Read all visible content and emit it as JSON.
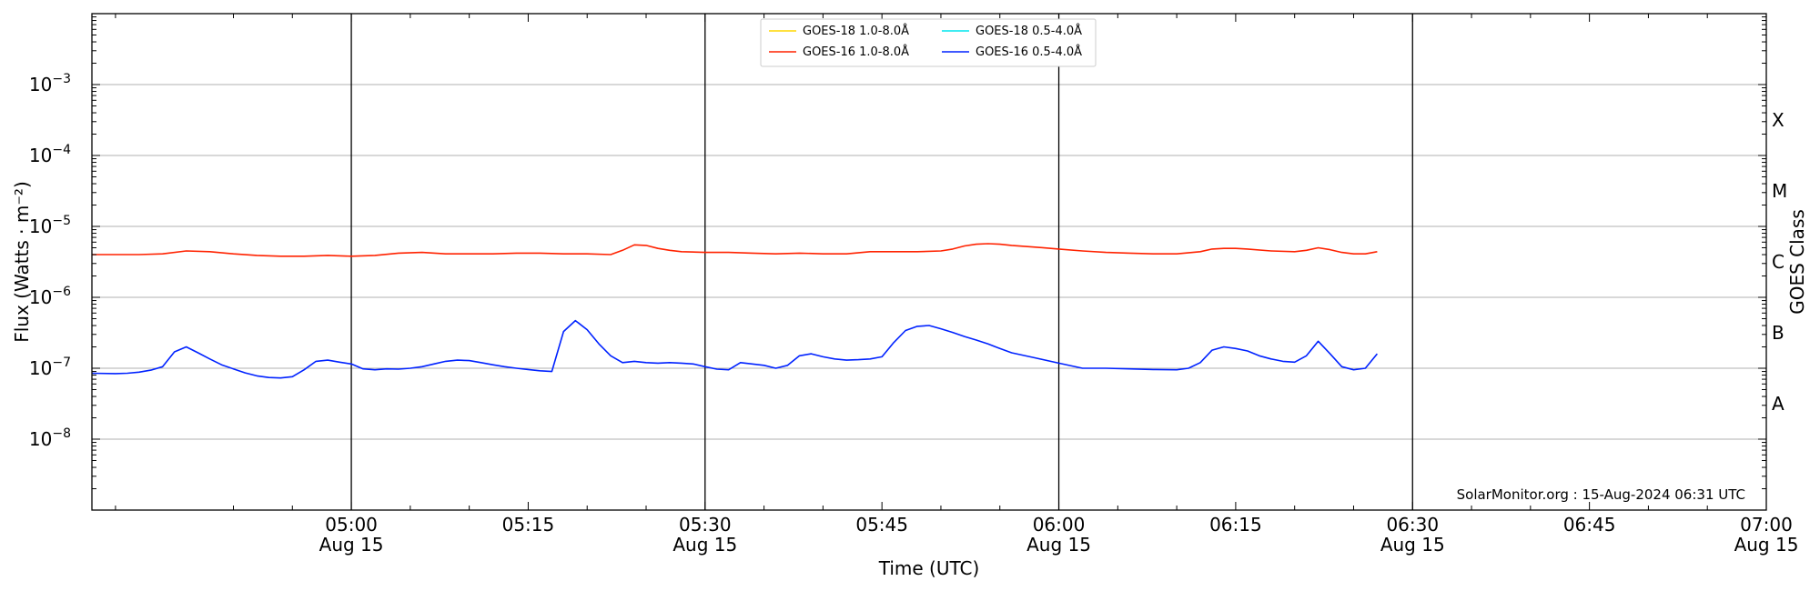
{
  "chart_data": {
    "type": "line",
    "xlabel": "Time (UTC)",
    "ylabel": "Flux (Watts · m⁻²)",
    "y2label": "GOES Class",
    "yscale": "log",
    "ylim": [
      1e-09,
      0.01
    ],
    "xlim": [
      "04:38",
      "07:00"
    ],
    "x_ticks": [
      {
        "t": "05:00",
        "label": "05:00",
        "sub": "Aug 15"
      },
      {
        "t": "05:15",
        "label": "05:15",
        "sub": ""
      },
      {
        "t": "05:30",
        "label": "05:30",
        "sub": "Aug 15"
      },
      {
        "t": "05:45",
        "label": "05:45",
        "sub": ""
      },
      {
        "t": "06:00",
        "label": "06:00",
        "sub": "Aug 15"
      },
      {
        "t": "06:15",
        "label": "06:15",
        "sub": ""
      },
      {
        "t": "06:30",
        "label": "06:30",
        "sub": "Aug 15"
      },
      {
        "t": "06:45",
        "label": "06:45",
        "sub": ""
      },
      {
        "t": "07:00",
        "label": "07:00",
        "sub": "Aug 15"
      }
    ],
    "vertical_lines": [
      "05:00",
      "05:30",
      "06:00",
      "06:30"
    ],
    "y_ticks": [
      {
        "v": 1e-08,
        "base": "10",
        "exp": "−8"
      },
      {
        "v": 1e-07,
        "base": "10",
        "exp": "−7"
      },
      {
        "v": 1e-06,
        "base": "10",
        "exp": "−6"
      },
      {
        "v": 1e-05,
        "base": "10",
        "exp": "−5"
      },
      {
        "v": 0.0001,
        "base": "10",
        "exp": "−4"
      },
      {
        "v": 0.001,
        "base": "10",
        "exp": "−3"
      }
    ],
    "goes_classes": [
      {
        "label": "A",
        "v": 3.16e-08
      },
      {
        "label": "B",
        "v": 3.16e-07
      },
      {
        "label": "C",
        "v": 3.16e-06
      },
      {
        "label": "M",
        "v": 3.16e-05
      },
      {
        "label": "X",
        "v": 0.000316
      }
    ],
    "legend": [
      {
        "name": "GOES-18 1.0-8.0Å",
        "color": "#ffd700"
      },
      {
        "name": "GOES-18 0.5-4.0Å",
        "color": "#00e5ee"
      },
      {
        "name": "GOES-16 1.0-8.0Å",
        "color": "#ff2200"
      },
      {
        "name": "GOES-16 0.5-4.0Å",
        "color": "#0022ff"
      }
    ],
    "series": [
      {
        "name": "GOES-16 1.0-8.0Å",
        "color": "#ff2200",
        "x": [
          "04:38",
          "04:40",
          "04:42",
          "04:44",
          "04:46",
          "04:48",
          "04:50",
          "04:52",
          "04:54",
          "04:56",
          "04:58",
          "05:00",
          "05:02",
          "05:04",
          "05:06",
          "05:08",
          "05:10",
          "05:12",
          "05:14",
          "05:16",
          "05:18",
          "05:20",
          "05:22",
          "05:23",
          "05:24",
          "05:25",
          "05:26",
          "05:27",
          "05:28",
          "05:30",
          "05:32",
          "05:34",
          "05:36",
          "05:38",
          "05:40",
          "05:42",
          "05:44",
          "05:46",
          "05:48",
          "05:50",
          "05:51",
          "05:52",
          "05:53",
          "05:54",
          "05:55",
          "05:56",
          "05:58",
          "06:00",
          "06:02",
          "06:04",
          "06:06",
          "06:08",
          "06:10",
          "06:12",
          "06:13",
          "06:14",
          "06:15",
          "06:16",
          "06:18",
          "06:20",
          "06:21",
          "06:22",
          "06:23",
          "06:24",
          "06:25",
          "06:26",
          "06:27"
        ],
        "values": [
          4e-06,
          4e-06,
          4e-06,
          4.1e-06,
          4.5e-06,
          4.4e-06,
          4.1e-06,
          3.9e-06,
          3.8e-06,
          3.8e-06,
          3.9e-06,
          3.8e-06,
          3.9e-06,
          4.2e-06,
          4.3e-06,
          4.1e-06,
          4.1e-06,
          4.1e-06,
          4.2e-06,
          4.2e-06,
          4.1e-06,
          4.1e-06,
          4e-06,
          4.6e-06,
          5.5e-06,
          5.4e-06,
          4.9e-06,
          4.6e-06,
          4.4e-06,
          4.3e-06,
          4.3e-06,
          4.2e-06,
          4.1e-06,
          4.2e-06,
          4.1e-06,
          4.1e-06,
          4.4e-06,
          4.4e-06,
          4.4e-06,
          4.5e-06,
          4.8e-06,
          5.3e-06,
          5.6e-06,
          5.7e-06,
          5.6e-06,
          5.4e-06,
          5.1e-06,
          4.8e-06,
          4.5e-06,
          4.3e-06,
          4.2e-06,
          4.1e-06,
          4.1e-06,
          4.4e-06,
          4.8e-06,
          4.9e-06,
          4.9e-06,
          4.8e-06,
          4.5e-06,
          4.4e-06,
          4.6e-06,
          5e-06,
          4.7e-06,
          4.3e-06,
          4.1e-06,
          4.1e-06,
          4.4e-06
        ]
      },
      {
        "name": "GOES-16 0.5-4.0Å",
        "color": "#0022ff",
        "x": [
          "04:38",
          "04:40",
          "04:41",
          "04:42",
          "04:43",
          "04:44",
          "04:45",
          "04:46",
          "04:47",
          "04:48",
          "04:49",
          "04:50",
          "04:51",
          "04:52",
          "04:53",
          "04:54",
          "04:55",
          "04:56",
          "04:57",
          "04:58",
          "04:59",
          "05:00",
          "05:01",
          "05:02",
          "05:03",
          "05:04",
          "05:05",
          "05:06",
          "05:07",
          "05:08",
          "05:09",
          "05:10",
          "05:11",
          "05:12",
          "05:13",
          "05:14",
          "05:15",
          "05:16",
          "05:17",
          "05:18",
          "05:19",
          "05:20",
          "05:21",
          "05:22",
          "05:23",
          "05:24",
          "05:25",
          "05:26",
          "05:27",
          "05:28",
          "05:29",
          "05:30",
          "05:31",
          "05:32",
          "05:33",
          "05:34",
          "05:35",
          "05:36",
          "05:37",
          "05:38",
          "05:39",
          "05:40",
          "05:41",
          "05:42",
          "05:43",
          "05:44",
          "05:45",
          "05:46",
          "05:47",
          "05:48",
          "05:49",
          "05:50",
          "05:51",
          "05:52",
          "05:53",
          "05:54",
          "05:55",
          "05:56",
          "05:58",
          "06:00",
          "06:02",
          "06:04",
          "06:06",
          "06:08",
          "06:10",
          "06:11",
          "06:12",
          "06:13",
          "06:14",
          "06:15",
          "06:16",
          "06:17",
          "06:18",
          "06:19",
          "06:20",
          "06:21",
          "06:22",
          "06:23",
          "06:24",
          "06:25",
          "06:26",
          "06:27"
        ],
        "values": [
          8.5e-08,
          8.4e-08,
          8.5e-08,
          8.8e-08,
          9.4e-08,
          1.05e-07,
          1.7e-07,
          2e-07,
          1.65e-07,
          1.35e-07,
          1.12e-07,
          9.8e-08,
          8.6e-08,
          7.8e-08,
          7.4e-08,
          7.3e-08,
          7.6e-08,
          9.5e-08,
          1.25e-07,
          1.3e-07,
          1.22e-07,
          1.15e-07,
          9.8e-08,
          9.5e-08,
          9.8e-08,
          9.7e-08,
          1e-07,
          1.05e-07,
          1.15e-07,
          1.25e-07,
          1.3e-07,
          1.28e-07,
          1.2e-07,
          1.12e-07,
          1.05e-07,
          1e-07,
          9.6e-08,
          9.2e-08,
          9e-08,
          3.3e-07,
          4.7e-07,
          3.5e-07,
          2.2e-07,
          1.5e-07,
          1.2e-07,
          1.25e-07,
          1.2e-07,
          1.18e-07,
          1.2e-07,
          1.18e-07,
          1.15e-07,
          1.05e-07,
          9.7e-08,
          9.5e-08,
          1.2e-07,
          1.15e-07,
          1.1e-07,
          1e-07,
          1.1e-07,
          1.5e-07,
          1.6e-07,
          1.45e-07,
          1.35e-07,
          1.3e-07,
          1.32e-07,
          1.35e-07,
          1.45e-07,
          2.3e-07,
          3.4e-07,
          3.9e-07,
          4e-07,
          3.6e-07,
          3.2e-07,
          2.8e-07,
          2.5e-07,
          2.2e-07,
          1.9e-07,
          1.65e-07,
          1.4e-07,
          1.18e-07,
          1e-07,
          1e-07,
          9.8e-08,
          9.6e-08,
          9.5e-08,
          1e-07,
          1.2e-07,
          1.8e-07,
          2e-07,
          1.9e-07,
          1.75e-07,
          1.5e-07,
          1.35e-07,
          1.25e-07,
          1.22e-07,
          1.5e-07,
          2.4e-07,
          1.6e-07,
          1.05e-07,
          9.5e-08,
          1e-07,
          1.6e-07
        ]
      }
    ]
  },
  "credit": "SolarMonitor.org : 15-Aug-2024 06:31 UTC"
}
